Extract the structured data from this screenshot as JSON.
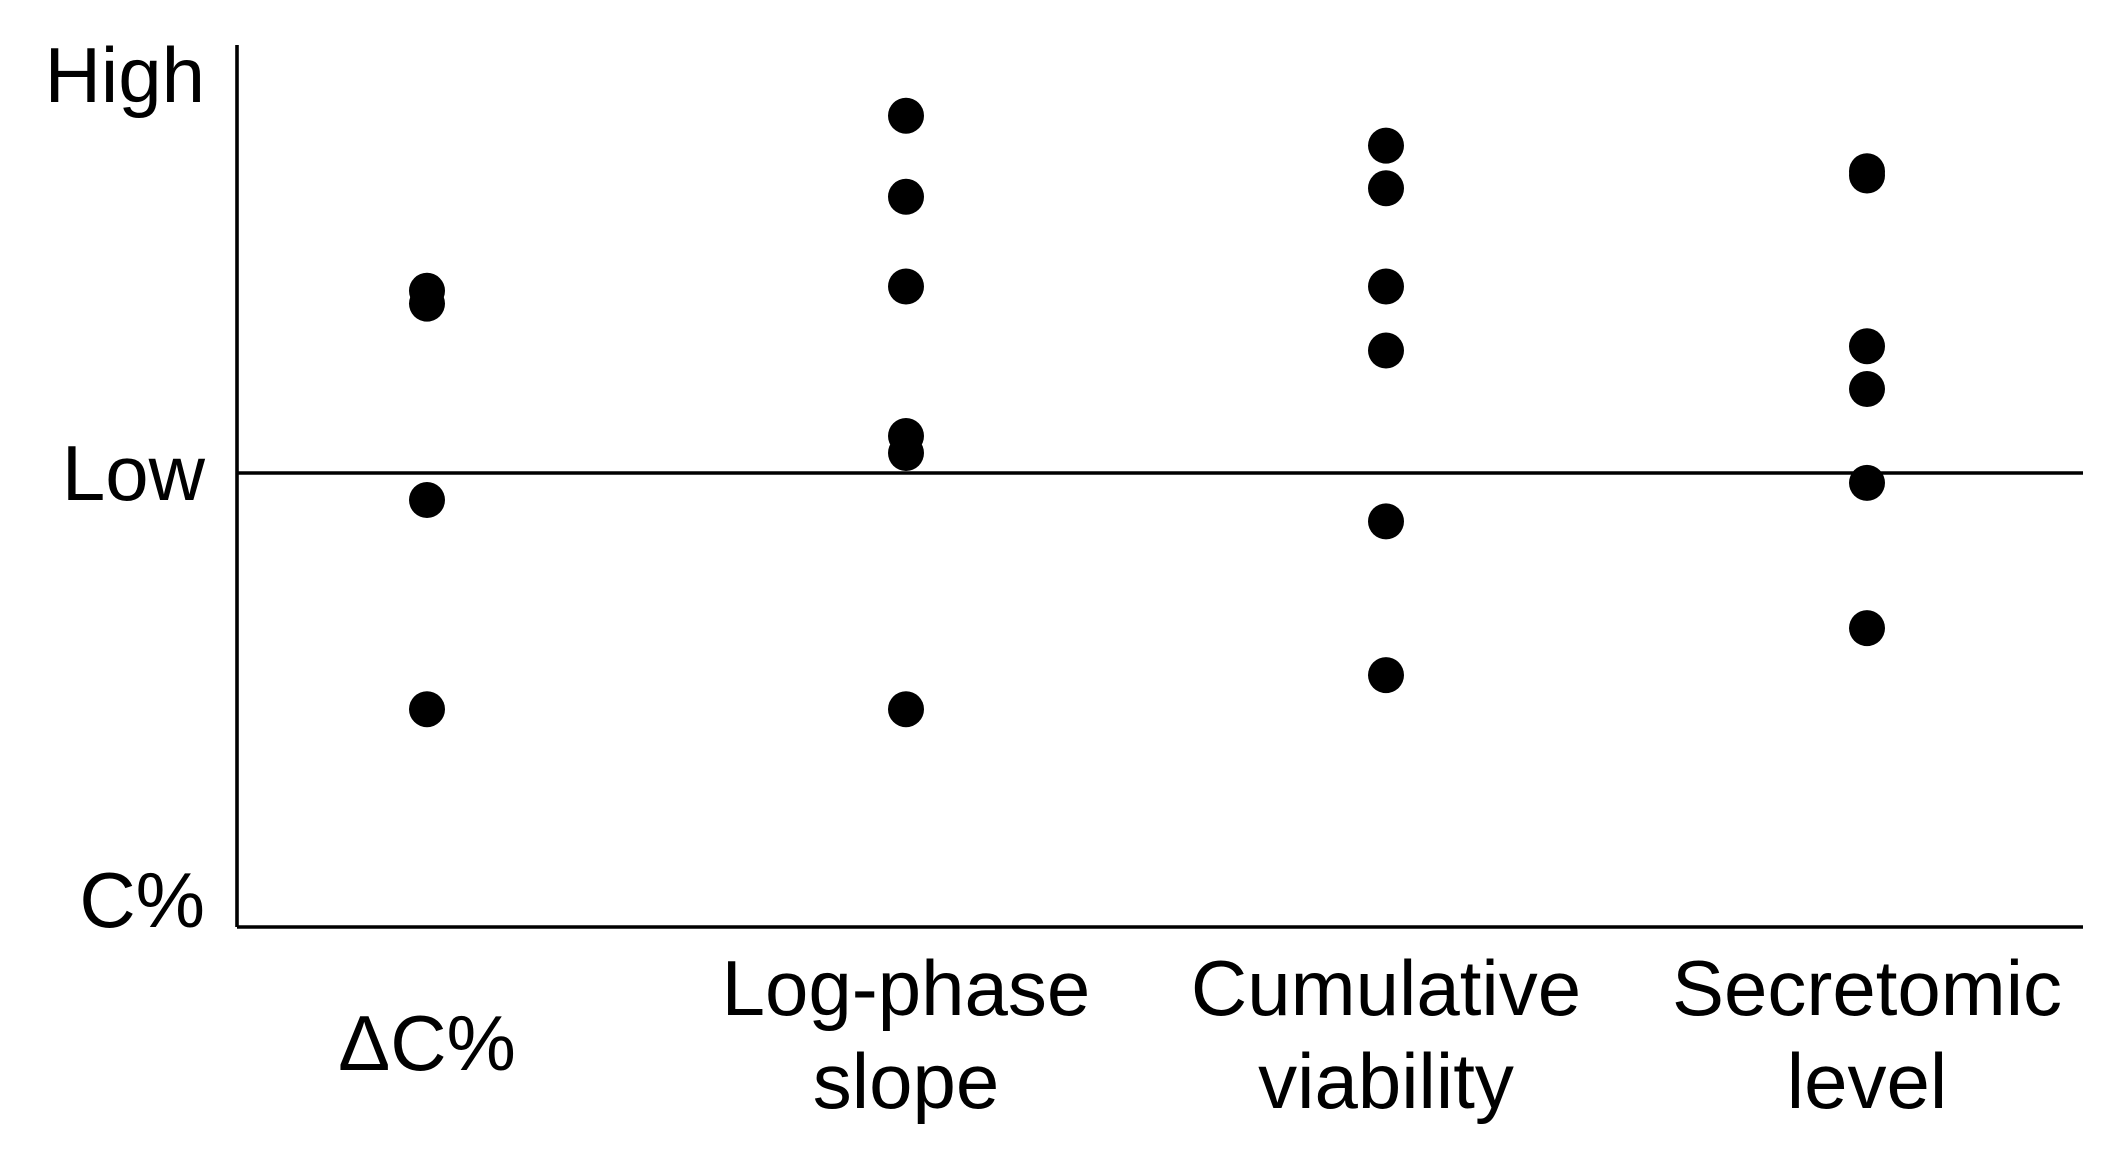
{
  "chart_data": {
    "type": "scatter",
    "title": "",
    "xlabel": "",
    "ylabel": "",
    "y_tick_labels": {
      "top": "High",
      "middle": "Low",
      "bottom": "C%"
    },
    "reference_line": "Low",
    "ylim": [
      0,
      1
    ],
    "grid": false,
    "legend": "none",
    "dot_color": "#000000",
    "categories": [
      {
        "label_lines": [
          "ΔC%"
        ],
        "values": [
          0.745,
          0.5,
          0.73,
          0.255
        ]
      },
      {
        "label_lines": [
          "Log-phase",
          "slope"
        ],
        "values": [
          0.95,
          0.75,
          0.555,
          0.255,
          0.575,
          0.855
        ]
      },
      {
        "label_lines": [
          "Cumulative",
          "viability"
        ],
        "values": [
          0.915,
          0.675,
          0.295,
          0.75,
          0.475,
          0.865
        ]
      },
      {
        "label_lines": [
          "Secretomic",
          "level"
        ],
        "values": [
          0.885,
          0.63,
          0.88,
          0.35,
          0.52,
          0.68
        ]
      }
    ]
  }
}
